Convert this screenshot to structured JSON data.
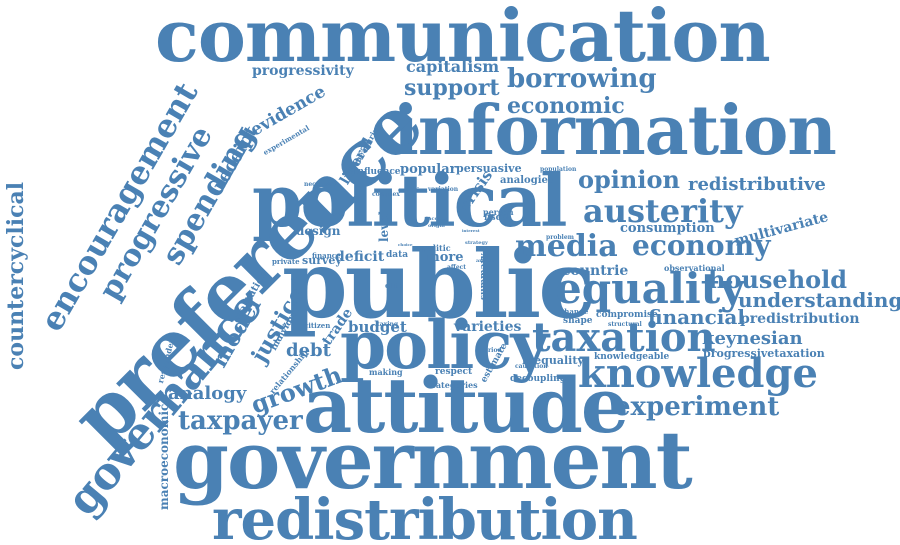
{
  "colors": {
    "word": "#4a81b4",
    "background": "#ffffff"
  },
  "words": [
    "communication",
    "information",
    "political",
    "public",
    "preference",
    "policy",
    "attitude",
    "government",
    "redistribution",
    "governance",
    "encouragement",
    "progressive",
    "spending",
    "countercyclical",
    "taxation",
    "knowledge",
    "equality",
    "austerity",
    "media",
    "economy",
    "household",
    "understanding",
    "experiment",
    "opinion",
    "redistributive",
    "borrowing",
    "support",
    "economic",
    "capitalism",
    "progressivity",
    "evidence",
    "receipt",
    "model",
    "justice",
    "analogy",
    "growth",
    "taxpayer",
    "debt",
    "financial",
    "predistribution",
    "keynesian",
    "progressivetaxation",
    "consumption",
    "multivariate",
    "countrie",
    "macroeconomic",
    "varieties",
    "budget",
    "deficit",
    "level",
    "survey",
    "design",
    "liberal",
    "popular",
    "persuasive",
    "influence",
    "analogies",
    "crisis",
    "fiscal",
    "person",
    "more",
    "politic",
    "data",
    "trade",
    "evaluation",
    "individual",
    "relationship",
    "important",
    "respondent",
    "making",
    "respect",
    "inequality",
    "knowledgeable",
    "decoupling",
    "categories",
    "estimate",
    "summary",
    "shape",
    "compromise",
    "structural",
    "change",
    "causation",
    "observational",
    "problem",
    "population",
    "variation",
    "complex",
    "coalition",
    "necessary",
    "measuring",
    "experimental",
    "finance",
    "private",
    "citizen",
    "taxing",
    "period",
    "interest",
    "article",
    "strategy",
    "affect",
    "origin",
    "income",
    "elite",
    "choice"
  ]
}
